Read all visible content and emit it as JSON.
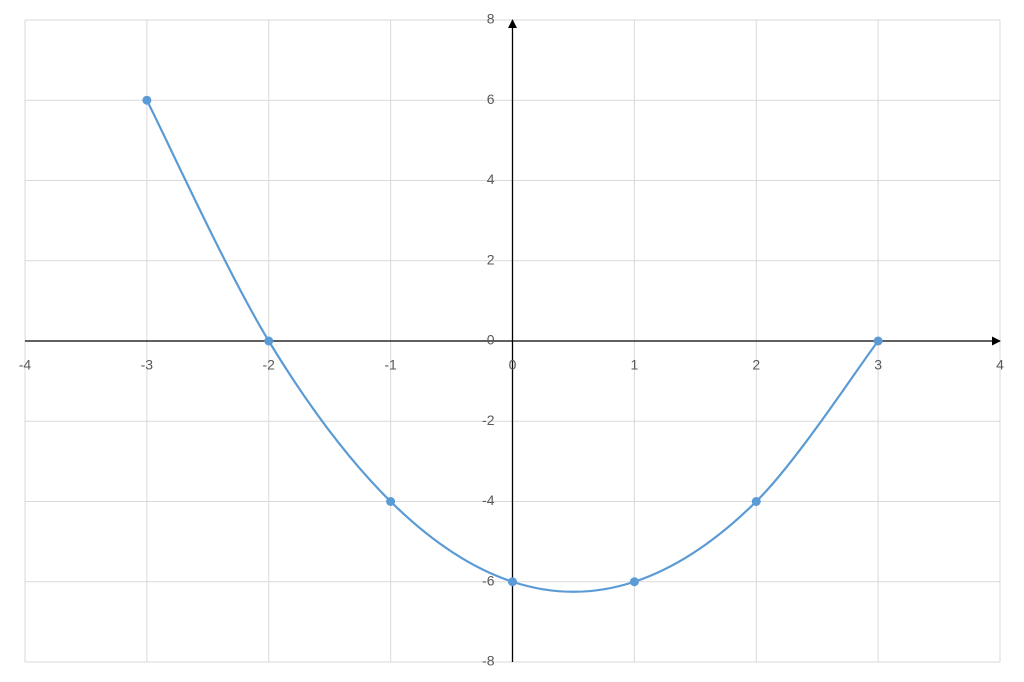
{
  "chart_data": {
    "type": "scatter",
    "smooth": true,
    "markers": true,
    "x": [
      -3,
      -2,
      -1,
      0,
      1,
      2,
      3
    ],
    "values": [
      6,
      0,
      -4,
      -6,
      -6,
      -4,
      0
    ],
    "color": "#5b9bd5",
    "xlim": [
      -4,
      4
    ],
    "xticks": [
      -4,
      -3,
      -2,
      -1,
      0,
      1,
      2,
      3,
      4
    ],
    "ylim": [
      -8,
      8
    ],
    "yticks": [
      -8,
      -6,
      -4,
      -2,
      0,
      2,
      4,
      6,
      8
    ],
    "grid": true
  }
}
